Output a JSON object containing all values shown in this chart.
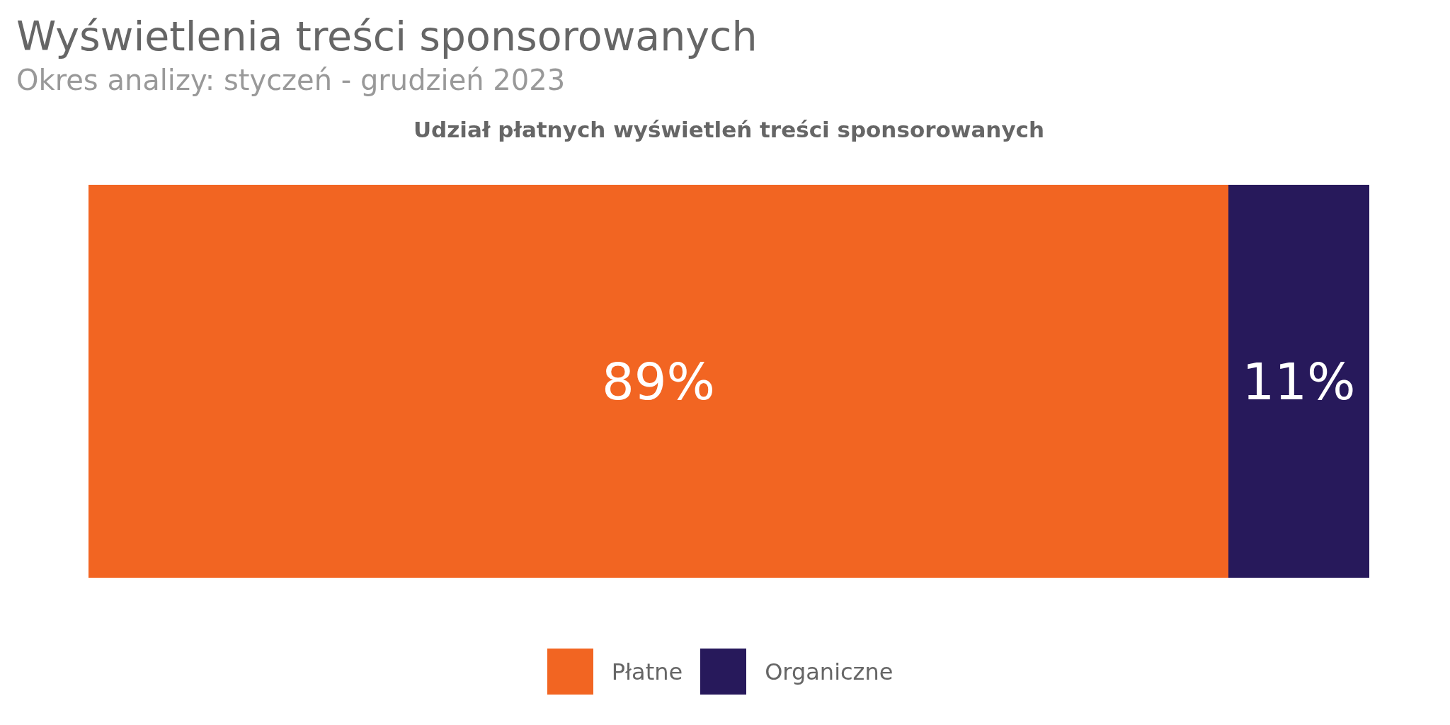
{
  "chart_data": {
    "type": "bar",
    "title": "Wyświetlenia treści sponsorowanych",
    "subtitle": "Okres analizy: styczeń - grudzień 2023",
    "xlabel": "Udział płatnych wyświetleń treści sponsorowanych",
    "orientation": "horizontal",
    "stacked": true,
    "categories": [
      null
    ],
    "series": [
      {
        "name": "Płatne",
        "color": "#f26522",
        "values": [
          89
        ],
        "value_labels": [
          "89%"
        ]
      },
      {
        "name": "Organiczne",
        "color": "#27195b",
        "values": [
          11
        ],
        "value_labels": [
          "11%"
        ]
      }
    ],
    "legend": "bottom",
    "grid": false
  }
}
